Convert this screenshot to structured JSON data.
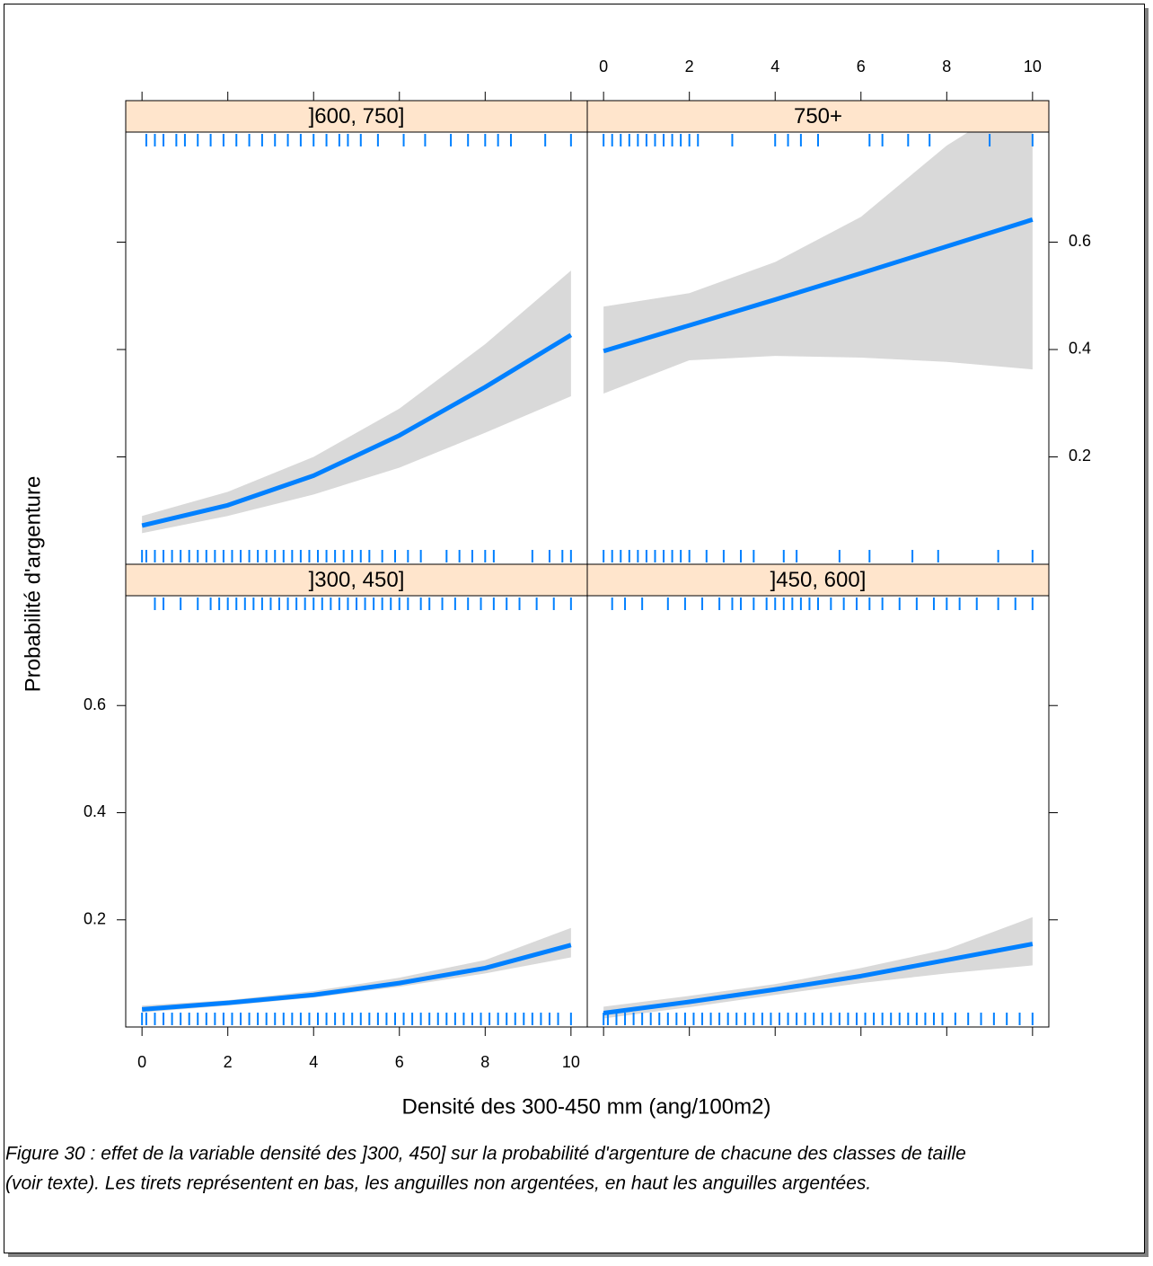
{
  "chart_data": {
    "type": "line",
    "x_label": "Densité des 300-450 mm (ang/100m2)",
    "y_label": "Probabilité d'argenture",
    "caption": [
      "Figure 30 : effet de la variable densité des ]300, 450] sur la probabilité d'argenture de chacune des classes de taille",
      "(voir texte). Les tirets représentent en bas, les anguilles non argentées, en haut les anguilles argentées."
    ],
    "x": [
      0,
      2,
      4,
      6,
      8,
      10
    ],
    "xlim": [
      -0.38,
      10.38
    ],
    "ylim": [
      0,
      0.805
    ],
    "xticks": [
      0,
      2,
      4,
      6,
      8,
      10
    ],
    "yticks": [
      0.2,
      0.4,
      0.6
    ],
    "line_color": "#0080ff",
    "band_color": "#d9d9d9",
    "strip_color": "#ffe5cc",
    "rug_color": "#0080ff",
    "panels": [
      {
        "strip": "]300, 450]",
        "fit": [
          0.033,
          0.045,
          0.06,
          0.082,
          0.11,
          0.153
        ],
        "lower": [
          0.027,
          0.04,
          0.055,
          0.075,
          0.1,
          0.13
        ],
        "upper": [
          0.04,
          0.05,
          0.067,
          0.092,
          0.125,
          0.185
        ],
        "rug_top": [
          0.3,
          0.5,
          0.9,
          1.3,
          1.6,
          1.8,
          2.0,
          2.2,
          2.4,
          2.6,
          2.8,
          3.0,
          3.2,
          3.4,
          3.6,
          3.8,
          4.0,
          4.2,
          4.4,
          4.6,
          4.8,
          5.0,
          5.2,
          5.4,
          5.6,
          5.8,
          6.0,
          6.2,
          6.5,
          6.7,
          7.0,
          7.3,
          7.6,
          7.9,
          8.2,
          8.5,
          8.8,
          9.2,
          9.6,
          10.0
        ],
        "rug_bottom": [
          0.0,
          0.1,
          0.3,
          0.5,
          0.7,
          0.9,
          1.1,
          1.3,
          1.5,
          1.7,
          1.9,
          2.1,
          2.3,
          2.5,
          2.7,
          2.9,
          3.1,
          3.3,
          3.5,
          3.7,
          3.9,
          4.1,
          4.3,
          4.5,
          4.7,
          4.9,
          5.1,
          5.3,
          5.5,
          5.7,
          5.9,
          6.1,
          6.3,
          6.5,
          6.7,
          6.9,
          7.1,
          7.3,
          7.5,
          7.7,
          7.9,
          8.1,
          8.3,
          8.5,
          8.7,
          8.9,
          9.1,
          9.3,
          9.5,
          9.7,
          10.0
        ]
      },
      {
        "strip": "]450, 600]",
        "fit": [
          0.026,
          0.047,
          0.07,
          0.095,
          0.125,
          0.155
        ],
        "lower": [
          0.016,
          0.037,
          0.06,
          0.082,
          0.1,
          0.115
        ],
        "upper": [
          0.038,
          0.058,
          0.08,
          0.11,
          0.145,
          0.205
        ],
        "rug_top": [
          0.2,
          0.5,
          0.9,
          1.5,
          1.9,
          2.3,
          2.7,
          3.0,
          3.2,
          3.5,
          3.8,
          4.0,
          4.2,
          4.4,
          4.6,
          4.8,
          5.0,
          5.3,
          5.6,
          5.9,
          6.2,
          6.5,
          6.9,
          7.3,
          7.7,
          8.0,
          8.3,
          8.7,
          9.2,
          9.6,
          10.0
        ],
        "rug_bottom": [
          0.0,
          0.1,
          0.3,
          0.5,
          0.7,
          0.9,
          1.1,
          1.3,
          1.5,
          1.7,
          1.9,
          2.1,
          2.3,
          2.5,
          2.7,
          2.9,
          3.1,
          3.3,
          3.5,
          3.7,
          3.9,
          4.1,
          4.3,
          4.5,
          4.7,
          4.9,
          5.1,
          5.3,
          5.5,
          5.7,
          5.9,
          6.1,
          6.3,
          6.5,
          6.7,
          6.9,
          7.1,
          7.3,
          7.5,
          7.7,
          7.9,
          8.2,
          8.5,
          8.8,
          9.1,
          9.4,
          9.7,
          10.0
        ]
      },
      {
        "strip": "]600, 750]",
        "fit": [
          0.072,
          0.11,
          0.165,
          0.24,
          0.33,
          0.427
        ],
        "lower": [
          0.058,
          0.09,
          0.13,
          0.18,
          0.245,
          0.313
        ],
        "upper": [
          0.09,
          0.135,
          0.2,
          0.29,
          0.41,
          0.547
        ],
        "rug_top": [
          0.1,
          0.3,
          0.5,
          0.8,
          1.0,
          1.3,
          1.6,
          1.9,
          2.2,
          2.5,
          2.8,
          3.1,
          3.4,
          3.7,
          4.0,
          4.3,
          4.6,
          4.8,
          5.1,
          5.5,
          6.1,
          6.6,
          7.2,
          7.6,
          8.0,
          8.3,
          8.6,
          9.4,
          10.0
        ],
        "rug_bottom": [
          0.0,
          0.1,
          0.3,
          0.5,
          0.7,
          0.9,
          1.1,
          1.3,
          1.5,
          1.7,
          1.9,
          2.1,
          2.3,
          2.5,
          2.7,
          2.9,
          3.1,
          3.3,
          3.5,
          3.7,
          3.9,
          4.1,
          4.3,
          4.5,
          4.7,
          4.9,
          5.1,
          5.3,
          5.6,
          5.9,
          6.2,
          6.5,
          7.1,
          7.4,
          7.7,
          8.0,
          8.2,
          9.1,
          9.5,
          9.8,
          10.0
        ]
      },
      {
        "strip": "750+",
        "fit": [
          0.397,
          0.445,
          0.493,
          0.542,
          0.592,
          0.642
        ],
        "lower": [
          0.318,
          0.38,
          0.388,
          0.385,
          0.377,
          0.363
        ],
        "upper": [
          0.48,
          0.505,
          0.563,
          0.647,
          0.78,
          0.88
        ],
        "rug_top": [
          0.0,
          0.2,
          0.4,
          0.6,
          0.8,
          1.0,
          1.2,
          1.4,
          1.6,
          1.8,
          2.0,
          2.2,
          3.0,
          4.0,
          4.3,
          4.6,
          5.0,
          6.2,
          6.5,
          7.1,
          7.6,
          9.0,
          10.0
        ],
        "rug_bottom": [
          0.0,
          0.2,
          0.4,
          0.6,
          0.8,
          1.0,
          1.2,
          1.4,
          1.6,
          1.8,
          2.0,
          2.4,
          2.8,
          3.2,
          3.5,
          4.2,
          4.5,
          5.5,
          6.2,
          7.2,
          7.8,
          9.2,
          10.0
        ]
      }
    ]
  }
}
